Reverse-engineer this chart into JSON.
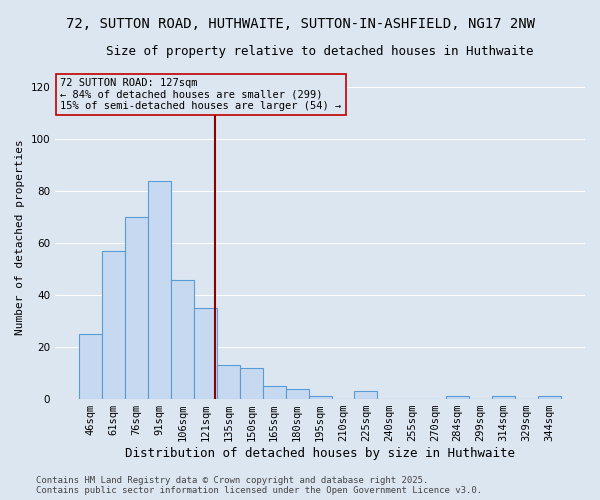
{
  "title": "72, SUTTON ROAD, HUTHWAITE, SUTTON-IN-ASHFIELD, NG17 2NW",
  "subtitle": "Size of property relative to detached houses in Huthwaite",
  "xlabel": "Distribution of detached houses by size in Huthwaite",
  "ylabel": "Number of detached properties",
  "categories": [
    "46sqm",
    "61sqm",
    "76sqm",
    "91sqm",
    "106sqm",
    "121sqm",
    "135sqm",
    "150sqm",
    "165sqm",
    "180sqm",
    "195sqm",
    "210sqm",
    "225sqm",
    "240sqm",
    "255sqm",
    "270sqm",
    "284sqm",
    "299sqm",
    "314sqm",
    "329sqm",
    "344sqm"
  ],
  "values": [
    25,
    57,
    70,
    84,
    46,
    35,
    13,
    12,
    5,
    4,
    1,
    0,
    3,
    0,
    0,
    0,
    1,
    0,
    1,
    0,
    1
  ],
  "bar_color": "#c6d9f0",
  "bar_edge_color": "#5b9bd5",
  "background_color": "#dce6f1",
  "grid_color": "#ffffff",
  "annotation_line_color": "#8b0000",
  "annotation_box_text": "72 SUTTON ROAD: 127sqm\n← 84% of detached houses are smaller (299)\n15% of semi-detached houses are larger (54) →",
  "ylim": [
    0,
    125
  ],
  "yticks": [
    0,
    20,
    40,
    60,
    80,
    100,
    120
  ],
  "footnote": "Contains HM Land Registry data © Crown copyright and database right 2025.\nContains public sector information licensed under the Open Government Licence v3.0.",
  "title_fontsize": 10,
  "subtitle_fontsize": 9,
  "xlabel_fontsize": 9,
  "ylabel_fontsize": 8,
  "tick_fontsize": 7.5,
  "annotation_fontsize": 7.5,
  "footnote_fontsize": 6.5
}
